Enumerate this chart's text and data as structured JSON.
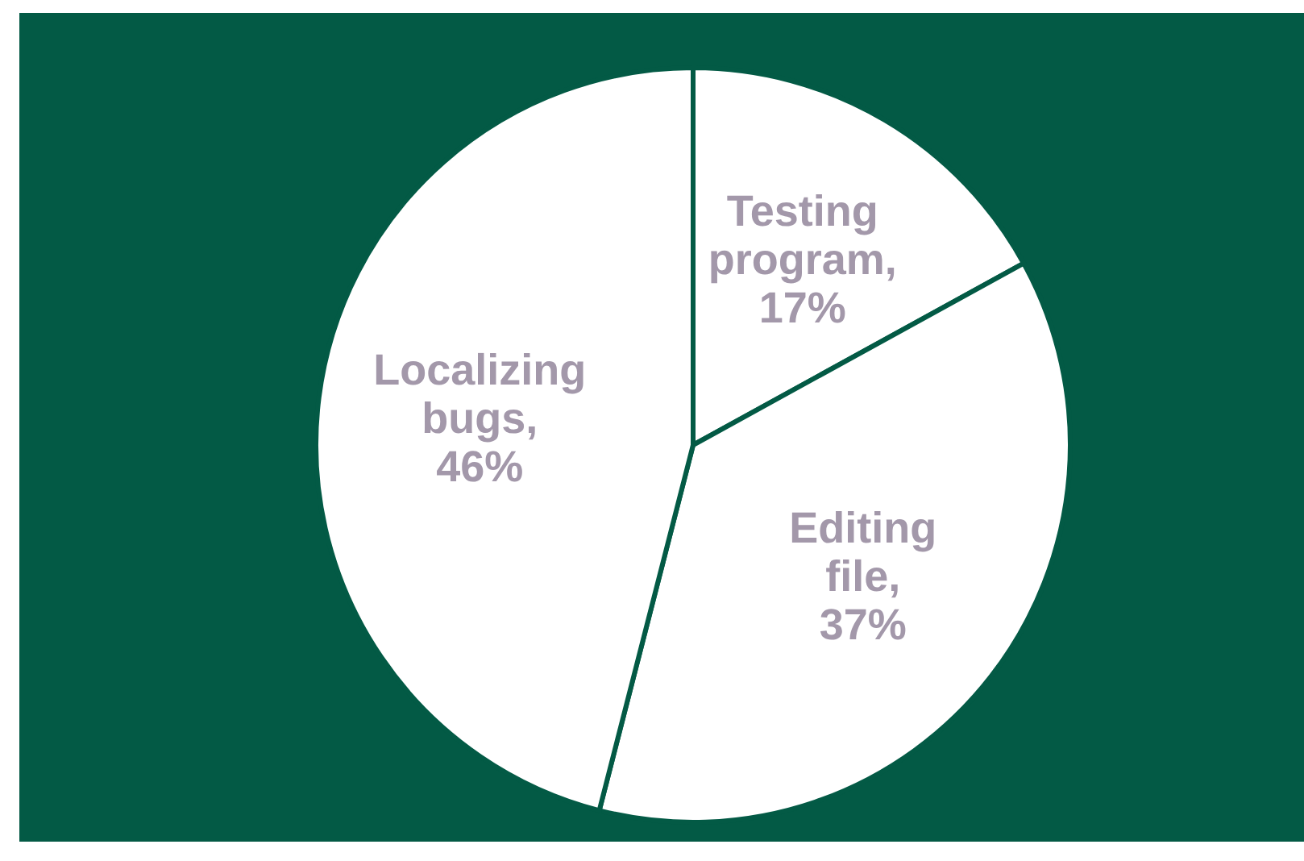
{
  "chart_data": {
    "type": "pie",
    "categories": [
      "Testing program",
      "Editing file",
      "Localizing bugs"
    ],
    "values": [
      17,
      37,
      46
    ],
    "colors": [
      "#ffffff",
      "#ffffff",
      "#ffffff"
    ],
    "value_labels": [
      ",17%",
      ",37%",
      ",46%"
    ]
  }
}
